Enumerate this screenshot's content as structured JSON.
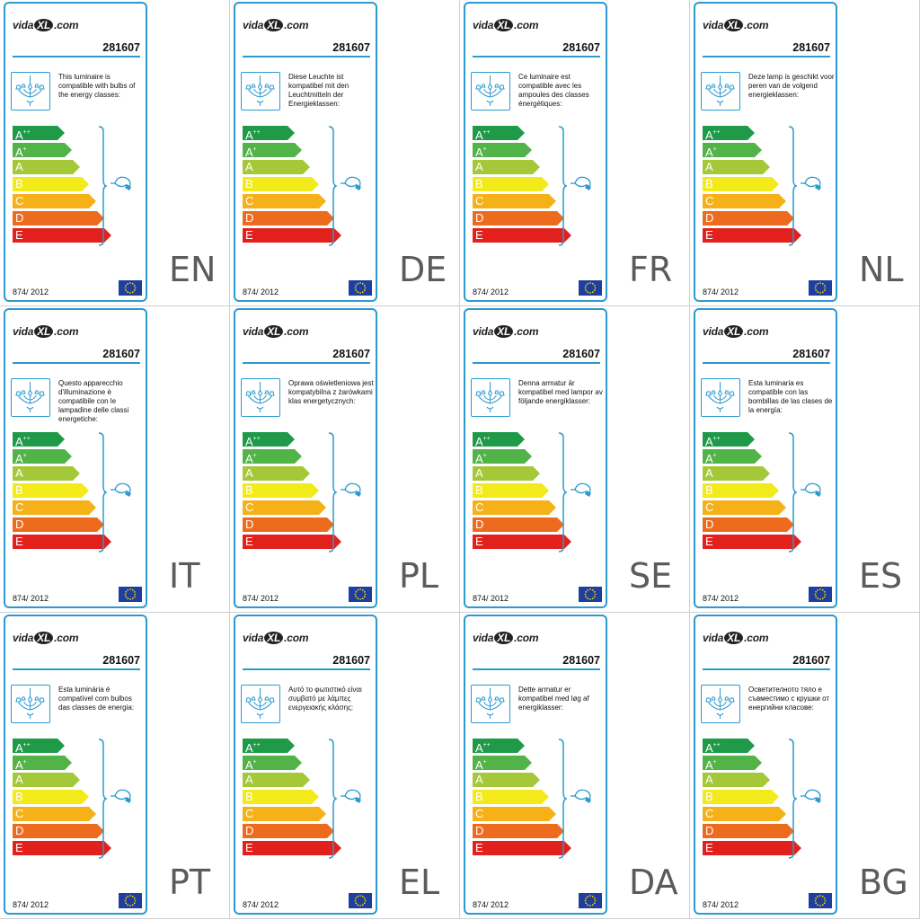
{
  "brand_prefix": "vida",
  "brand_xl": "XL",
  "brand_suffix": ".com",
  "product_code": "281607",
  "regulation": "874/ 2012",
  "icons": {
    "lamp": "chandelier-icon",
    "bulb": "light-bulb-icon",
    "flag": "eu-flag-icon"
  },
  "energy_classes": [
    {
      "base": "A",
      "sup": "++",
      "color": "#1e9a48",
      "fraction": 0.36
    },
    {
      "base": "A",
      "sup": "+",
      "color": "#52b348",
      "fraction": 0.41
    },
    {
      "base": "A",
      "sup": "",
      "color": "#a4c837",
      "fraction": 0.47
    },
    {
      "base": "B",
      "sup": "",
      "color": "#f2ea1b",
      "fraction": 0.53
    },
    {
      "base": "C",
      "sup": "",
      "color": "#f6b118",
      "fraction": 0.58
    },
    {
      "base": "D",
      "sup": "",
      "color": "#ec6b1d",
      "fraction": 0.64
    },
    {
      "base": "E",
      "sup": "",
      "color": "#e2211c",
      "fraction": 0.69
    }
  ],
  "colors": {
    "accent": "#2b9ad0",
    "eu_blue": "#1f3f9e",
    "eu_star": "#f6d300"
  },
  "labels": [
    {
      "lang": "EN",
      "text": "This luminaire is compatible with bulbs of the energy classes:"
    },
    {
      "lang": "DE",
      "text": "Diese Leuchte ist kompatibel mit den Leuchtmitteln der Energieklassen:"
    },
    {
      "lang": "FR",
      "text": "Ce luminaire est compatible avec les ampoules des classes énergétiques:"
    },
    {
      "lang": "NL",
      "text": "Deze lamp is geschikt voor peren van de volgend energieklassen:"
    },
    {
      "lang": "IT",
      "text": "Questo apparecchio d'illuminazione è compatibile con le lampadine delle classi energetiche:"
    },
    {
      "lang": "PL",
      "text": "Oprawa oświetleniowa jest kompatybilna z żarówkami klas energetycznych:"
    },
    {
      "lang": "SE",
      "text": "Denna armatur är kompatibel med lampor av följande energiklasser:"
    },
    {
      "lang": "ES",
      "text": "Esta luminaria es compatible con las bombillas de las clases de la energía:"
    },
    {
      "lang": "PT",
      "text": "Esta luminária é compatível com bulbos das classes de energia:"
    },
    {
      "lang": "EL",
      "text": "Αυτό το φωτιστικό είναι συμβατό με λάμπες ενεργειακής κλάσης:"
    },
    {
      "lang": "DA",
      "text": "Dette armatur er kompatibel med løg af energiklasser:"
    },
    {
      "lang": "BG",
      "text": "Осветителното тяло е съвместимо с крушки от енергийни класове:"
    }
  ]
}
